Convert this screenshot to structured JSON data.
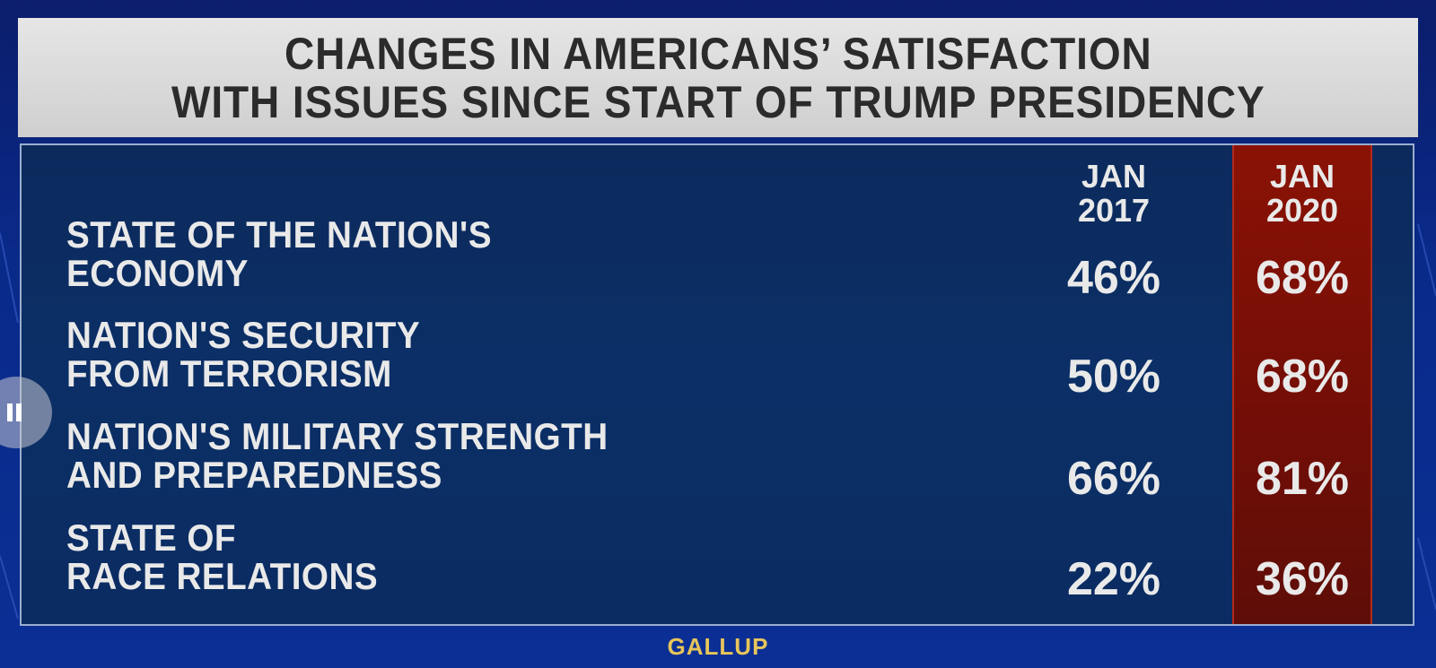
{
  "title": {
    "line1": "CHANGES IN AMERICANS’ SATISFACTION",
    "line2": "WITH ISSUES SINCE START OF TRUMP PRESIDENCY"
  },
  "chart_data": {
    "type": "table",
    "columns": [
      {
        "line1": "JAN",
        "line2": "2017",
        "highlighted": false
      },
      {
        "line1": "JAN",
        "line2": "2020",
        "highlighted": true
      }
    ],
    "rows": [
      {
        "label_line1": "STATE OF THE NATION'S",
        "label_line2": "ECONOMY",
        "values": [
          "46%",
          "68%"
        ]
      },
      {
        "label_line1": "NATION'S SECURITY",
        "label_line2": "FROM TERRORISM",
        "values": [
          "50%",
          "68%"
        ]
      },
      {
        "label_line1": "NATION'S MILITARY STRENGTH",
        "label_line2": "AND PREPAREDNESS",
        "values": [
          "66%",
          "81%"
        ]
      },
      {
        "label_line1": "STATE OF",
        "label_line2": "RACE RELATIONS",
        "values": [
          "22%",
          "36%"
        ]
      }
    ],
    "highlight_color": "#7a0f06"
  },
  "source": "GALLUP",
  "player": {
    "pause_icon": "pause-icon"
  }
}
